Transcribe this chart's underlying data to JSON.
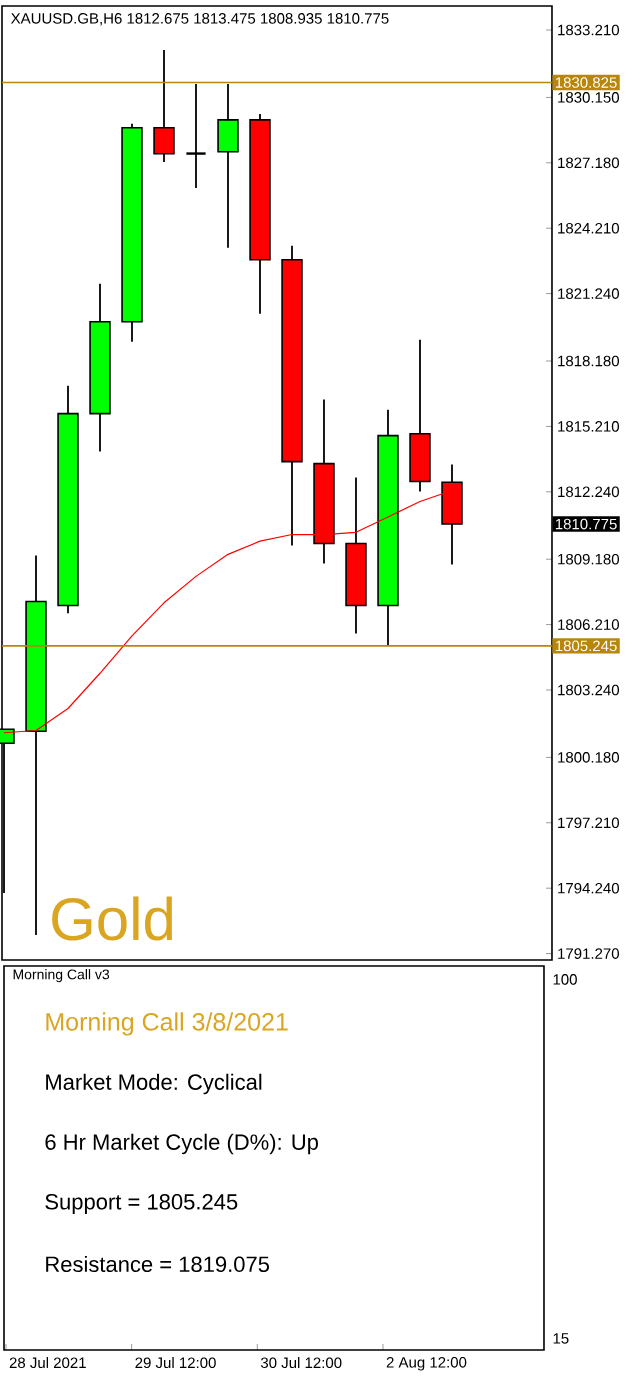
{
  "chart_data": [
    {
      "type": "candlestick",
      "title": "XAUUSD.GB,H6  1812.675 1813.475 1808.935 1810.775",
      "categories": [
        null,
        null,
        null,
        null,
        null,
        null,
        null,
        null,
        null,
        null,
        null,
        null,
        null,
        null,
        null
      ],
      "ohlc": [
        [
          1800.82,
          1801.46,
          1794.02,
          1801.46
        ],
        [
          1801.37,
          1809.35,
          1792.11,
          1807.26
        ],
        [
          1807.08,
          1817.06,
          1806.72,
          1815.79
        ],
        [
          1815.79,
          1821.69,
          1814.07,
          1819.96
        ],
        [
          1819.96,
          1828.95,
          1819.06,
          1828.77
        ],
        [
          1828.77,
          1832.3,
          1827.22,
          1827.59
        ],
        [
          1827.6,
          1830.76,
          1826.04,
          1827.6
        ],
        [
          1827.68,
          1830.76,
          1823.32,
          1829.13
        ],
        [
          1829.13,
          1829.4,
          1820.33,
          1822.78
        ],
        [
          1822.78,
          1823.41,
          1809.8,
          1813.61
        ],
        [
          1813.52,
          1816.43,
          1808.99,
          1809.89
        ],
        [
          1809.89,
          1812.89,
          1805.81,
          1807.08
        ],
        [
          1807.08,
          1815.97,
          1805.25,
          1814.79
        ],
        [
          1814.88,
          1819.15,
          1812.25,
          1812.71
        ],
        [
          1812.675,
          1813.475,
          1808.935,
          1810.775
        ]
      ],
      "colors": [
        "#00ff00",
        "#00ff00",
        "#00ff00",
        "#00ff00",
        "#00ff00",
        "#ff0000",
        "#000000",
        "#00ff00",
        "#ff0000",
        "#ff0000",
        "#ff0000",
        "#ff0000",
        "#00ff00",
        "#ff0000",
        "#ff0000"
      ],
      "series": [
        {
          "type": "line",
          "color": "#ff0000",
          "values": [
            1801.3,
            1801.4,
            1802.4,
            1804.0,
            1805.7,
            1807.2,
            1808.4,
            1809.4,
            1810.0,
            1810.3,
            1810.3,
            1810.4,
            1811.1,
            1811.8,
            1812.3
          ]
        }
      ],
      "ylim": [
        1790.98,
        1834.3
      ],
      "yticks": [
        {
          "value": 1833.21,
          "label": "1833.210"
        },
        {
          "value": 1830.15,
          "label": "1830.150"
        },
        {
          "value": 1827.18,
          "label": "1827.180"
        },
        {
          "value": 1824.21,
          "label": "1824.210"
        },
        {
          "value": 1821.24,
          "label": "1821.240"
        },
        {
          "value": 1818.18,
          "label": "1818.180"
        },
        {
          "value": 1815.21,
          "label": "1815.210"
        },
        {
          "value": 1812.24,
          "label": "1812.240"
        },
        {
          "value": 1809.18,
          "label": "1809.180"
        },
        {
          "value": 1806.21,
          "label": "1806.210"
        },
        {
          "value": 1803.24,
          "label": "1803.240"
        },
        {
          "value": 1800.18,
          "label": "1800.180"
        },
        {
          "value": 1797.21,
          "label": "1797.210"
        },
        {
          "value": 1794.24,
          "label": "1794.240"
        },
        {
          "value": 1791.27,
          "label": "1791.270"
        }
      ],
      "ref_lines": [
        {
          "axis": "y",
          "value": 1830.825,
          "label": "1830.825",
          "color": "#b8860b"
        },
        {
          "axis": "y",
          "value": 1805.245,
          "label": "1805.245",
          "color": "#b8860b"
        }
      ],
      "annotations": [
        "Gold",
        "1810.775"
      ],
      "tick_labels": "y"
    },
    {
      "type": "other",
      "title": "Morning Call v3",
      "categories": [
        "28 Jul 2021",
        null,
        null,
        null,
        "29 Jul 12:00",
        null,
        null,
        null,
        "30 Jul 12:00",
        null,
        null,
        null,
        "2 Aug 12:00",
        null,
        null
      ],
      "annotations": [
        "Morning Call 3/8/2021",
        "Market Mode: Cyclical",
        "6 Hr Market Cycle (D%): Up",
        "Support = 1805.245",
        "Resistance = 1819.075",
        "100",
        "15"
      ]
    }
  ]
}
